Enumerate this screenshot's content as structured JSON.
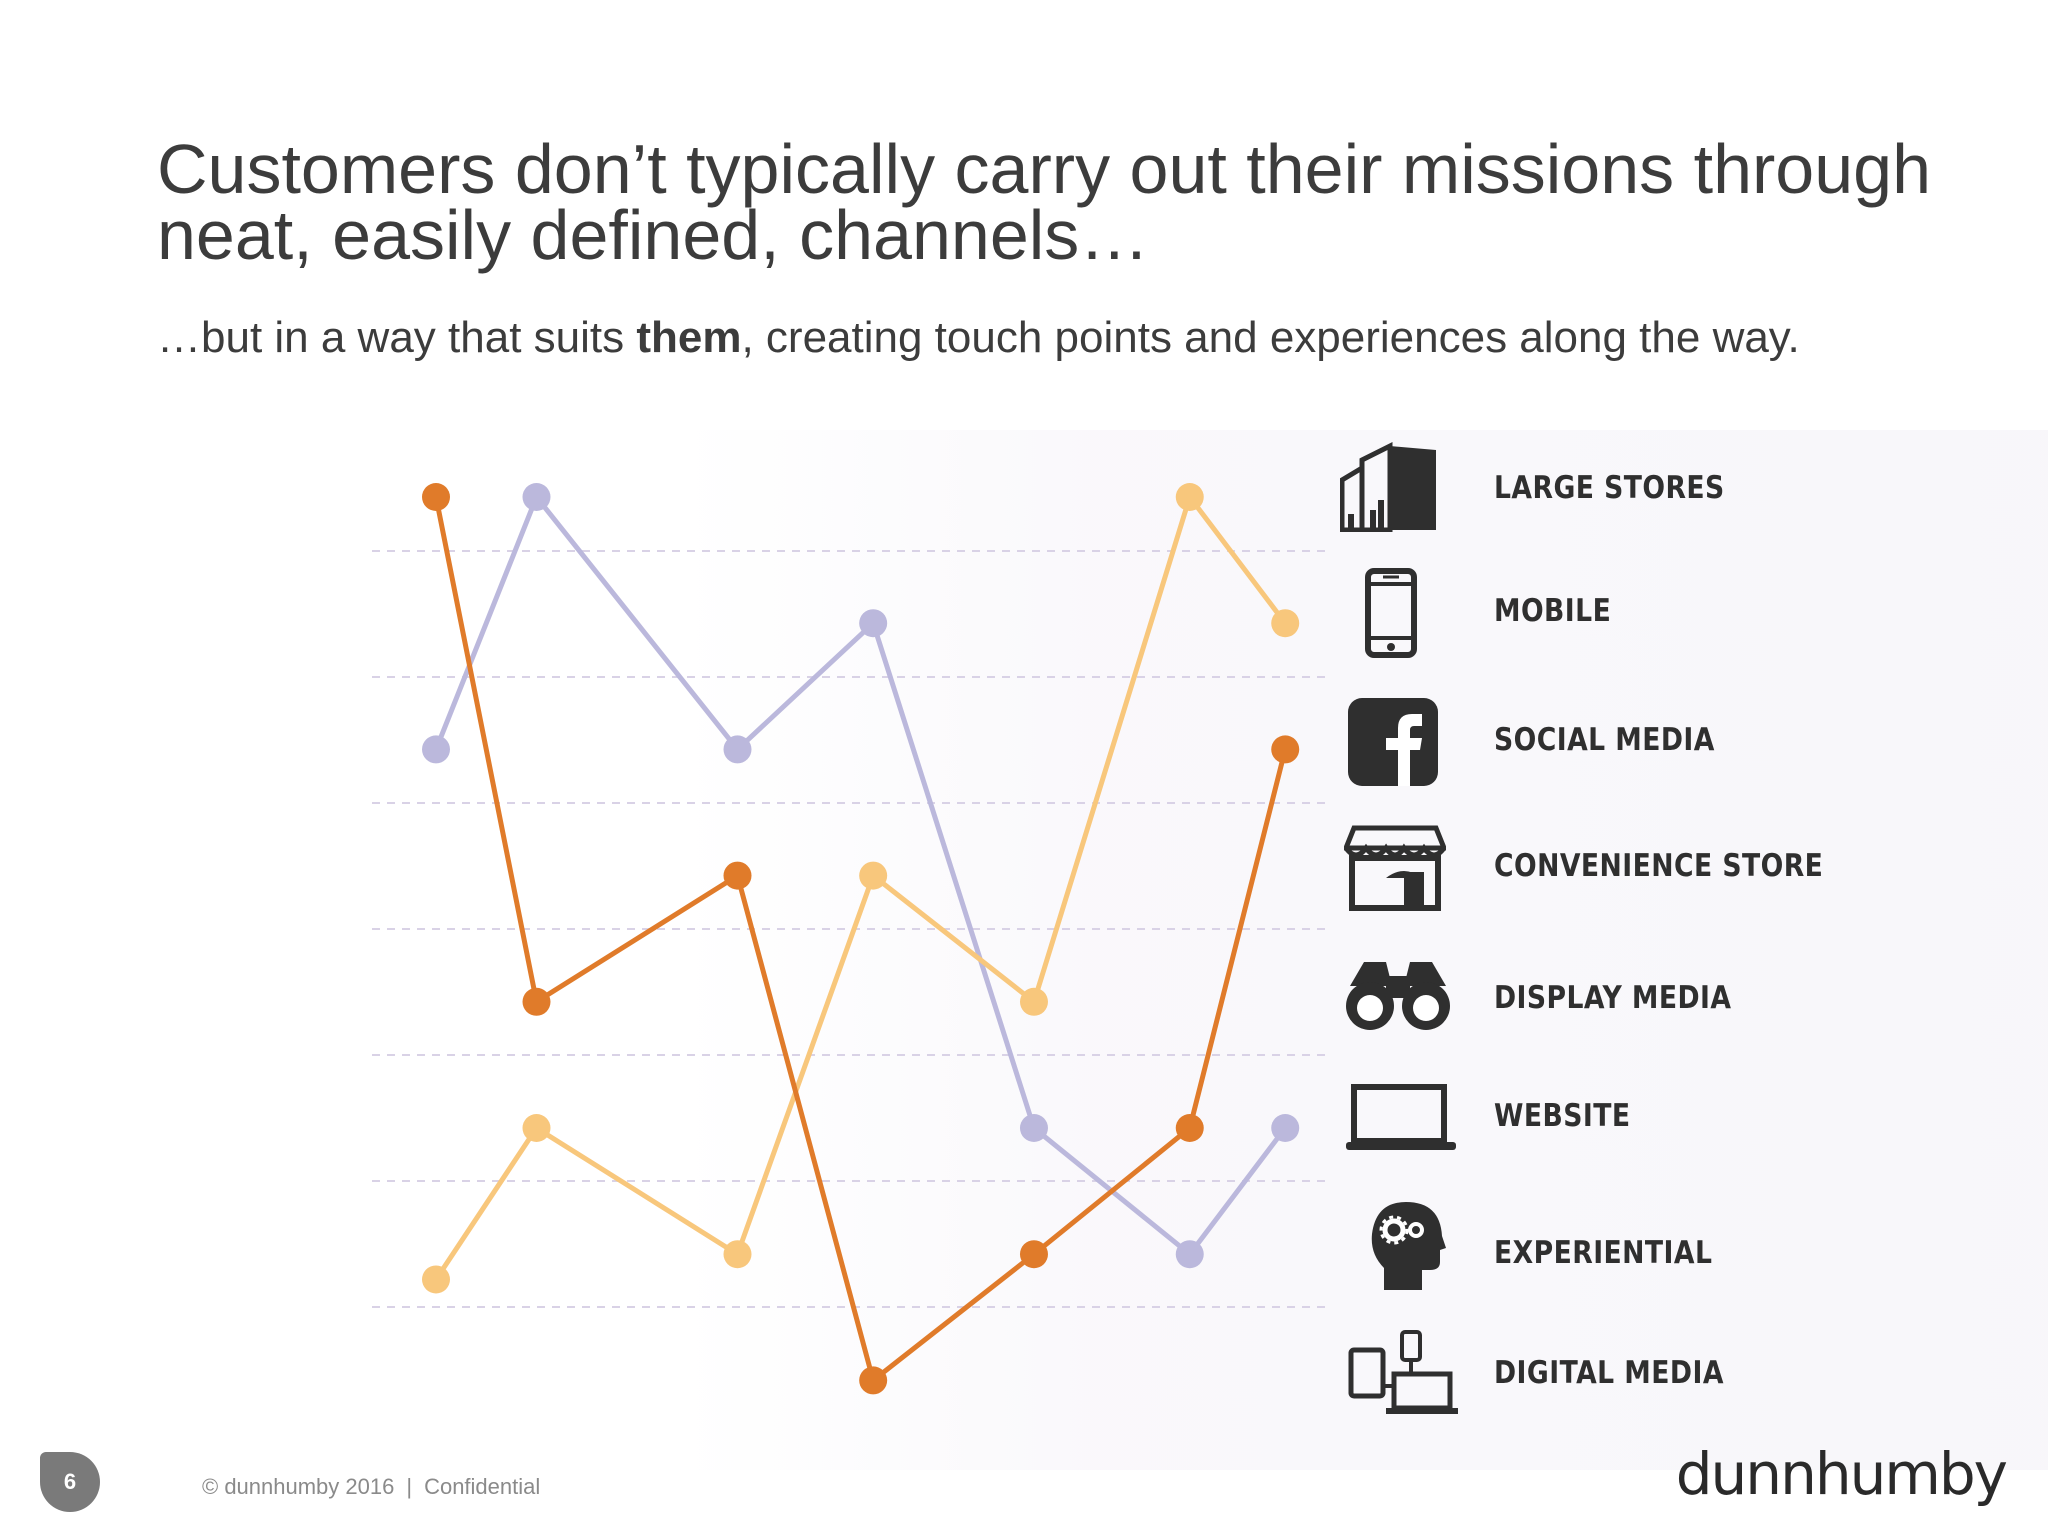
{
  "slide": {
    "title_line1": "Customers don’t typically carry out their missions through",
    "title_line2": "neat, easily defined, channels…",
    "subtitle_pre": "…but in a way that suits ",
    "subtitle_bold": "them",
    "subtitle_post": ", creating touch points and experiences along the way.",
    "page_number": "6",
    "footer_copyright": "© dunnhumby 2016",
    "footer_separator": "|",
    "footer_confidential": "Confidential",
    "logo_text": "dunnhumby"
  },
  "colors": {
    "orange": "#e07b2a",
    "lavender": "#bbb8dc",
    "light_orange": "#f8c77c",
    "grid": "#d9d2e6",
    "icon": "#2f2f2f"
  },
  "chart_data": {
    "type": "line",
    "title": "",
    "xlabel": "",
    "ylabel": "",
    "x": [
      1,
      2,
      3,
      4,
      5,
      6,
      7
    ],
    "x_positions": [
      0,
      1,
      3,
      4.35,
      5.95,
      7.5,
      8.45
    ],
    "categories": [
      "LARGE STORES",
      "MOBILE",
      "SOCIAL MEDIA",
      "CONVENIENCE STORE",
      "DISPLAY MEDIA",
      "WEBSITE",
      "EXPERIENTIAL",
      "DIGITAL MEDIA"
    ],
    "grid": true,
    "series": [
      {
        "name": "orange",
        "color_key": "orange",
        "points": [
          [
            0,
            0
          ],
          [
            1,
            4
          ],
          [
            3,
            3
          ],
          [
            4.35,
            7
          ],
          [
            5.95,
            6
          ],
          [
            7.5,
            5
          ],
          [
            8.45,
            2
          ]
        ]
      },
      {
        "name": "lavender",
        "color_key": "lavender",
        "points": [
          [
            0,
            2
          ],
          [
            1,
            0
          ],
          [
            3,
            2
          ],
          [
            4.35,
            1
          ],
          [
            5.95,
            5
          ],
          [
            7.5,
            6
          ],
          [
            8.45,
            5
          ]
        ]
      },
      {
        "name": "light orange",
        "color_key": "light_orange",
        "points": [
          [
            0,
            6.2
          ],
          [
            1,
            5
          ],
          [
            3,
            6
          ],
          [
            4.35,
            3
          ],
          [
            5.95,
            4
          ],
          [
            7.5,
            0
          ],
          [
            8.45,
            1
          ]
        ]
      }
    ]
  }
}
